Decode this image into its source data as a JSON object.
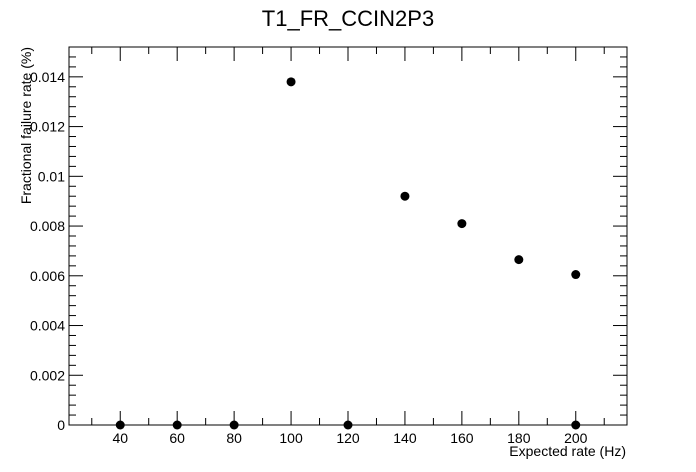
{
  "chart_data": {
    "type": "scatter",
    "title": "T1_FR_CCIN2P3",
    "xlabel": "Expected rate (Hz)",
    "ylabel": "Fractional failure rate (%)",
    "xlim": [
      22,
      218
    ],
    "ylim": [
      0,
      0.0152
    ],
    "x_ticks": [
      40,
      60,
      80,
      100,
      120,
      140,
      160,
      180,
      200
    ],
    "x_tick_labels": [
      "40",
      "60",
      "80",
      "100",
      "120",
      "140",
      "160",
      "180",
      "200"
    ],
    "y_ticks": [
      0,
      0.002,
      0.004,
      0.006,
      0.008,
      0.01,
      0.012,
      0.014
    ],
    "y_tick_labels": [
      "0",
      "0.002",
      "0.004",
      "0.006",
      "0.008",
      "0.01",
      "0.012",
      "0.014"
    ],
    "grid": false,
    "legend": "none",
    "marker_color": "#000000",
    "points": [
      {
        "x": 40,
        "y": 0
      },
      {
        "x": 60,
        "y": 0
      },
      {
        "x": 80,
        "y": 0
      },
      {
        "x": 100,
        "y": 0.0138
      },
      {
        "x": 120,
        "y": 0
      },
      {
        "x": 140,
        "y": 0.0092
      },
      {
        "x": 160,
        "y": 0.0081
      },
      {
        "x": 180,
        "y": 0.00665
      },
      {
        "x": 200,
        "y": 0.00605
      },
      {
        "x": 200,
        "y": 0
      }
    ]
  }
}
